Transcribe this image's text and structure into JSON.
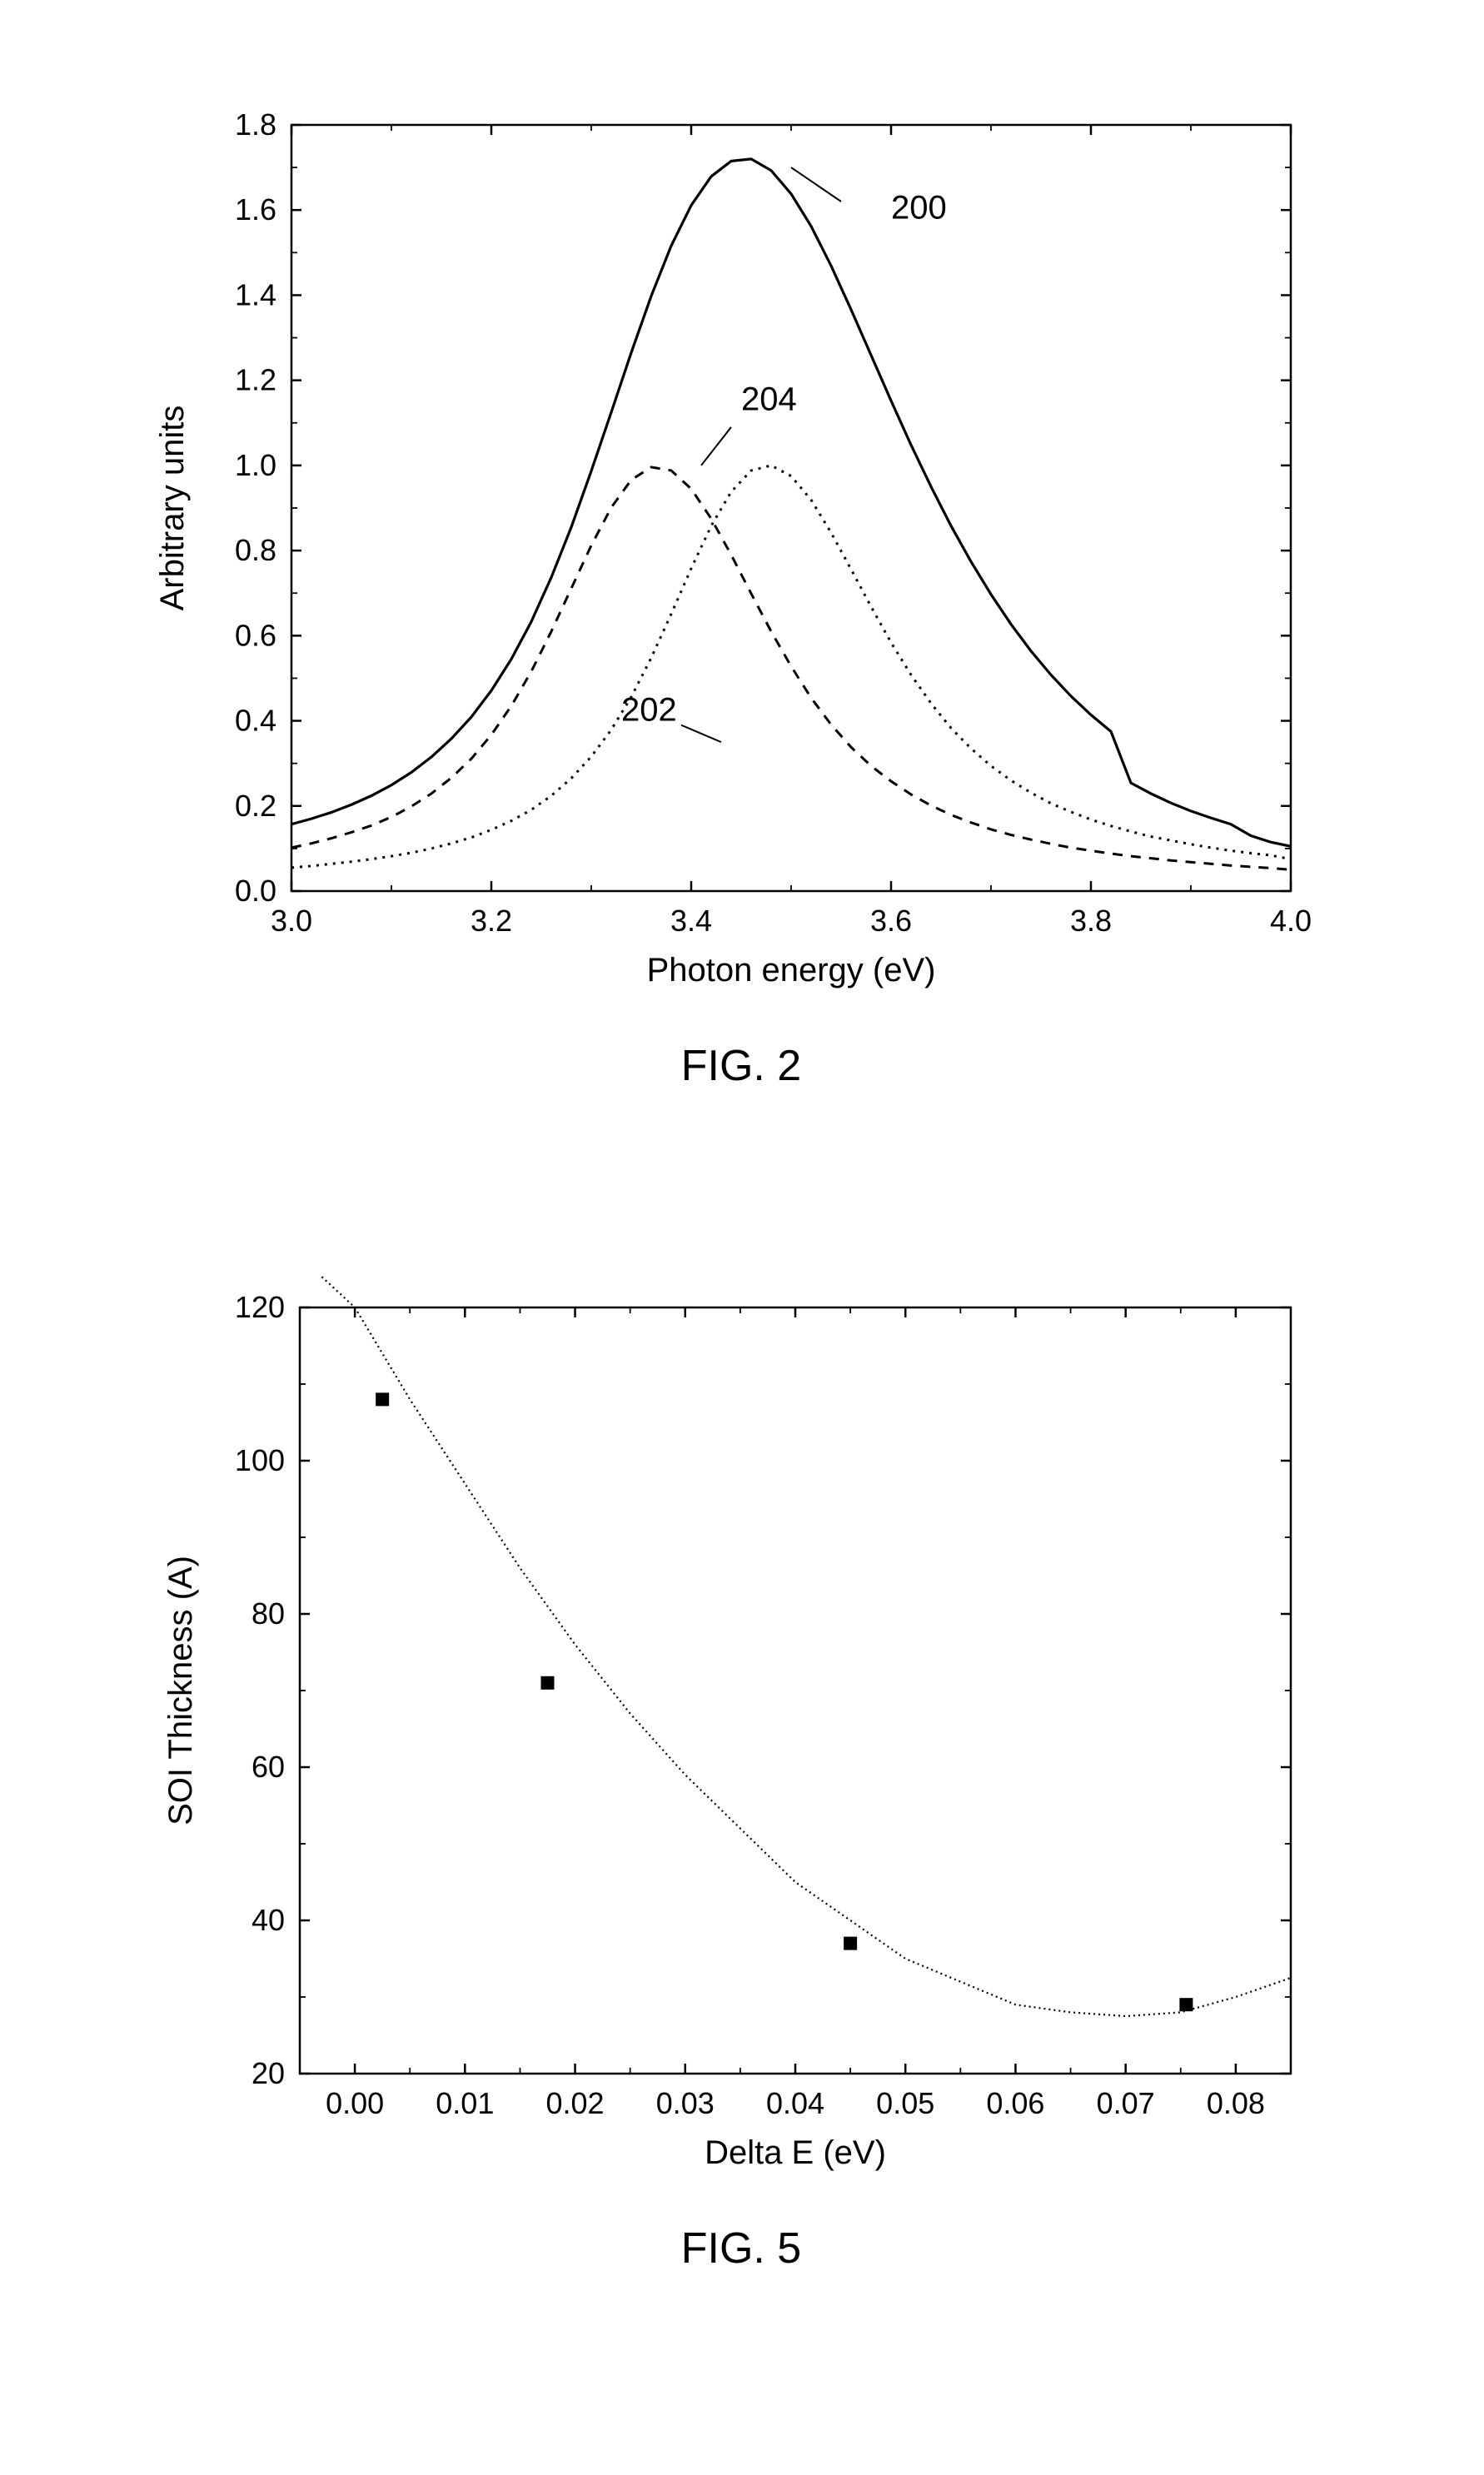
{
  "figure2": {
    "type": "line",
    "title": "FIG. 2",
    "title_fontsize": 52,
    "xlabel": "Photon energy (eV)",
    "ylabel": "Arbitrary units",
    "label_fontsize": 40,
    "tick_fontsize": 36,
    "xlim": [
      3.0,
      4.0
    ],
    "ylim": [
      0.0,
      1.8
    ],
    "xticks": [
      3.0,
      3.2,
      3.4,
      3.6,
      3.8,
      4.0
    ],
    "yticks": [
      0.0,
      0.2,
      0.4,
      0.6,
      0.8,
      1.0,
      1.2,
      1.4,
      1.6,
      1.8
    ],
    "background_color": "#ffffff",
    "axis_color": "#000000",
    "series": [
      {
        "name": "200",
        "label": "200",
        "label_pos": {
          "x": 3.6,
          "y": 1.58
        },
        "leader": {
          "x1": 3.55,
          "y1": 1.62,
          "x2": 3.5,
          "y2": 1.7
        },
        "color": "#000000",
        "line_style": "solid",
        "line_width": 3.2,
        "x": [
          3.0,
          3.02,
          3.04,
          3.06,
          3.08,
          3.1,
          3.12,
          3.14,
          3.16,
          3.18,
          3.2,
          3.22,
          3.24,
          3.26,
          3.28,
          3.3,
          3.32,
          3.34,
          3.36,
          3.38,
          3.4,
          3.42,
          3.44,
          3.46,
          3.48,
          3.5,
          3.52,
          3.54,
          3.56,
          3.58,
          3.6,
          3.62,
          3.64,
          3.66,
          3.68,
          3.7,
          3.72,
          3.74,
          3.76,
          3.78,
          3.8,
          3.82,
          3.84,
          3.86,
          3.88,
          3.9,
          3.92,
          3.94,
          3.96,
          3.98,
          4.0
        ],
        "y": [
          0.157,
          0.17,
          0.185,
          0.203,
          0.224,
          0.249,
          0.279,
          0.315,
          0.358,
          0.409,
          0.471,
          0.545,
          0.633,
          0.737,
          0.855,
          0.987,
          1.125,
          1.265,
          1.398,
          1.516,
          1.611,
          1.679,
          1.715,
          1.72,
          1.693,
          1.638,
          1.562,
          1.469,
          1.366,
          1.259,
          1.152,
          1.048,
          0.95,
          0.858,
          0.774,
          0.697,
          0.627,
          0.564,
          0.508,
          0.458,
          0.414,
          0.375,
          0.254,
          0.229,
          0.207,
          0.188,
          0.172,
          0.157,
          0.13,
          0.115,
          0.105
        ]
      },
      {
        "name": "204",
        "label": "204",
        "label_pos": {
          "x": 3.45,
          "y": 1.13
        },
        "leader": {
          "x1": 3.44,
          "y1": 1.09,
          "x2": 3.41,
          "y2": 1.0
        },
        "color": "#000000",
        "line_style": "dashed",
        "dash_pattern": "12,10",
        "line_width": 3.0,
        "x": [
          3.0,
          3.02,
          3.04,
          3.06,
          3.08,
          3.1,
          3.12,
          3.14,
          3.16,
          3.18,
          3.2,
          3.22,
          3.24,
          3.26,
          3.28,
          3.3,
          3.32,
          3.34,
          3.36,
          3.38,
          3.4,
          3.42,
          3.44,
          3.46,
          3.48,
          3.5,
          3.52,
          3.54,
          3.56,
          3.58,
          3.6,
          3.62,
          3.64,
          3.66,
          3.68,
          3.7,
          3.72,
          3.74,
          3.76,
          3.78,
          3.8,
          3.82,
          3.84,
          3.86,
          3.88,
          3.9,
          3.92,
          3.94,
          3.96,
          3.98,
          4.0
        ],
        "y": [
          0.102,
          0.112,
          0.124,
          0.138,
          0.154,
          0.174,
          0.199,
          0.229,
          0.266,
          0.311,
          0.367,
          0.435,
          0.516,
          0.61,
          0.711,
          0.812,
          0.901,
          0.966,
          0.996,
          0.988,
          0.945,
          0.875,
          0.79,
          0.699,
          0.61,
          0.528,
          0.454,
          0.391,
          0.338,
          0.294,
          0.258,
          0.227,
          0.201,
          0.179,
          0.161,
          0.145,
          0.132,
          0.121,
          0.111,
          0.102,
          0.095,
          0.088,
          0.082,
          0.077,
          0.072,
          0.068,
          0.064,
          0.06,
          0.057,
          0.054,
          0.05
        ]
      },
      {
        "name": "202",
        "label": "202",
        "label_pos": {
          "x": 3.33,
          "y": 0.4
        },
        "leader": {
          "x1": 3.39,
          "y1": 0.39,
          "x2": 3.43,
          "y2": 0.35
        },
        "color": "#000000",
        "line_style": "dotted",
        "dash_pattern": "3,7",
        "line_width": 3.0,
        "x": [
          3.0,
          3.02,
          3.04,
          3.06,
          3.08,
          3.1,
          3.12,
          3.14,
          3.16,
          3.18,
          3.2,
          3.22,
          3.24,
          3.26,
          3.28,
          3.3,
          3.32,
          3.34,
          3.36,
          3.38,
          3.4,
          3.42,
          3.44,
          3.46,
          3.48,
          3.5,
          3.52,
          3.54,
          3.56,
          3.58,
          3.6,
          3.62,
          3.64,
          3.66,
          3.68,
          3.7,
          3.72,
          3.74,
          3.76,
          3.78,
          3.8,
          3.82,
          3.84,
          3.86,
          3.88,
          3.9,
          3.92,
          3.94,
          3.96,
          3.98,
          4.0
        ],
        "y": [
          0.055,
          0.059,
          0.064,
          0.069,
          0.075,
          0.082,
          0.09,
          0.1,
          0.112,
          0.126,
          0.144,
          0.165,
          0.191,
          0.224,
          0.265,
          0.316,
          0.379,
          0.456,
          0.548,
          0.651,
          0.758,
          0.858,
          0.938,
          0.988,
          1.0,
          0.975,
          0.919,
          0.842,
          0.756,
          0.668,
          0.584,
          0.508,
          0.441,
          0.383,
          0.335,
          0.294,
          0.26,
          0.231,
          0.206,
          0.186,
          0.168,
          0.153,
          0.14,
          0.128,
          0.119,
          0.11,
          0.102,
          0.095,
          0.089,
          0.084,
          0.075
        ]
      }
    ]
  },
  "figure5": {
    "type": "scatter_with_fit",
    "title": "FIG. 5",
    "title_fontsize": 52,
    "xlabel": "Delta E (eV)",
    "ylabel": "SOI Thickness (A)",
    "label_fontsize": 40,
    "tick_fontsize": 36,
    "xlim": [
      -0.005,
      0.085
    ],
    "ylim": [
      20,
      120
    ],
    "xticks": [
      0.0,
      0.01,
      0.02,
      0.03,
      0.04,
      0.05,
      0.06,
      0.07,
      0.08
    ],
    "xtick_labels": [
      "0.00",
      "0.01",
      "0.02",
      "0.03",
      "0.04",
      "0.05",
      "0.06",
      "0.07",
      "0.08"
    ],
    "yticks": [
      20,
      40,
      60,
      80,
      100,
      120
    ],
    "background_color": "#ffffff",
    "axis_color": "#000000",
    "marker_color": "#000000",
    "marker_size": 16,
    "marker_shape": "square",
    "fit_line_color": "#000000",
    "fit_line_style": "dotted",
    "fit_dash_pattern": "2,4",
    "fit_line_width": 2.2,
    "points": [
      {
        "x": 0.0025,
        "y": 108
      },
      {
        "x": 0.0175,
        "y": 71
      },
      {
        "x": 0.045,
        "y": 37
      },
      {
        "x": 0.0755,
        "y": 29
      }
    ],
    "fit_curve": {
      "x": [
        -0.003,
        0.0,
        0.005,
        0.01,
        0.015,
        0.02,
        0.025,
        0.03,
        0.035,
        0.04,
        0.045,
        0.05,
        0.055,
        0.06,
        0.065,
        0.07,
        0.075,
        0.08,
        0.085
      ],
      "y": [
        124,
        120,
        108,
        97,
        86,
        76,
        67,
        59,
        52,
        45,
        40,
        35,
        32,
        29,
        28,
        27.5,
        28,
        30,
        32.5
      ]
    }
  }
}
